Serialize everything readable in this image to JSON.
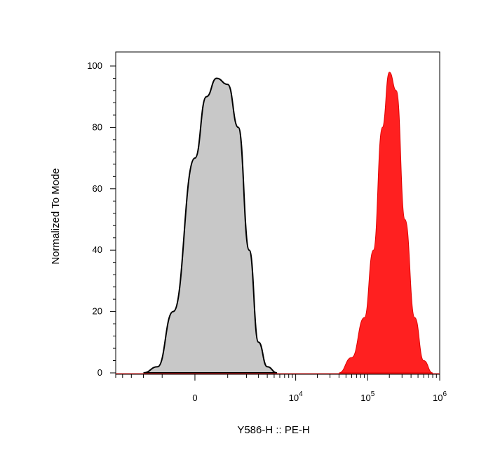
{
  "chart_data": {
    "type": "area",
    "xlabel": "Y586-H :: PE-H",
    "ylabel": "Normalized To Mode",
    "ylim": [
      0,
      100
    ],
    "y_ticks": [
      "0",
      "20",
      "40",
      "60",
      "80",
      "100"
    ],
    "x_scale": "biexponential",
    "x_ticks": [
      {
        "base": "0",
        "exp": ""
      },
      {
        "base": "10",
        "exp": "4"
      },
      {
        "base": "10",
        "exp": "5"
      },
      {
        "base": "10",
        "exp": "6"
      }
    ],
    "grid": false,
    "legend": "none",
    "series": [
      {
        "color": "#c8c8c8",
        "stroke": "#000000",
        "x": [
          -2000,
          -1200,
          -600,
          0,
          300,
          600,
          1000,
          1500,
          2200,
          3000,
          4000,
          5500
        ],
        "y": [
          0,
          2,
          20,
          70,
          90,
          96,
          94,
          80,
          40,
          10,
          2,
          0
        ]
      },
      {
        "color": "#ff2020",
        "stroke": "#e00000",
        "x": [
          40000,
          60000,
          90000,
          120000,
          160000,
          200000,
          250000,
          330000,
          450000,
          600000,
          800000
        ],
        "y": [
          0,
          5,
          18,
          40,
          80,
          98,
          92,
          50,
          18,
          4,
          0
        ]
      }
    ]
  }
}
